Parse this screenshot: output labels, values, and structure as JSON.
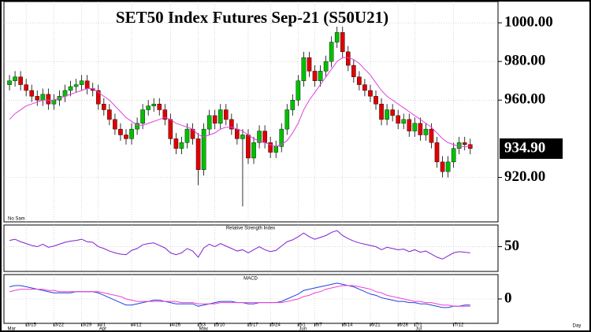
{
  "chart_data": [
    {
      "type": "candlestick",
      "title": "SET50  Index  Futures  Sep-21  (S50U21)",
      "note": "No Sam",
      "xlim": [
        -1,
        88
      ],
      "ylim": [
        897,
        1011
      ],
      "yticks": [
        {
          "value": 920,
          "label": "920.00"
        },
        {
          "value": 960,
          "label": "960.00"
        },
        {
          "value": 980,
          "label": "980.00"
        },
        {
          "value": 1000,
          "label": "1000.00"
        }
      ],
      "last": {
        "value": 934.9,
        "label": "934.90"
      },
      "up_color": "#00c000",
      "down_color": "#e00000",
      "open": [
        968,
        970,
        972,
        968,
        965,
        962,
        960,
        963,
        958,
        960,
        962,
        965,
        967,
        968,
        970,
        966,
        965,
        958,
        955,
        950,
        945,
        942,
        940,
        945,
        948,
        955,
        957,
        958,
        955,
        950,
        940,
        935,
        938,
        945,
        940,
        924,
        945,
        952,
        948,
        955,
        950,
        945,
        940,
        942,
        930,
        938,
        944,
        938,
        933,
        936,
        945,
        955,
        960,
        970,
        982,
        975,
        970,
        975,
        980,
        990,
        995,
        985,
        978,
        972,
        968,
        965,
        962,
        958,
        950,
        955,
        952,
        948,
        950,
        944,
        948,
        942,
        945,
        938,
        928,
        923,
        928,
        935,
        938,
        937
      ],
      "high": [
        973,
        975,
        975,
        971,
        968,
        965,
        966,
        966,
        963,
        965,
        968,
        970,
        971,
        973,
        973,
        969,
        968,
        961,
        958,
        953,
        948,
        945,
        948,
        951,
        958,
        960,
        961,
        961,
        958,
        953,
        943,
        941,
        948,
        948,
        943,
        948,
        955,
        955,
        958,
        958,
        953,
        948,
        945,
        945,
        941,
        947,
        947,
        941,
        939,
        948,
        958,
        963,
        973,
        985,
        985,
        978,
        978,
        983,
        993,
        998,
        998,
        988,
        981,
        975,
        971,
        968,
        965,
        961,
        958,
        958,
        955,
        953,
        953,
        951,
        951,
        948,
        948,
        941,
        931,
        931,
        938,
        941,
        941,
        940
      ],
      "low": [
        965,
        967,
        965,
        962,
        959,
        957,
        957,
        955,
        955,
        957,
        959,
        962,
        964,
        965,
        963,
        962,
        955,
        952,
        947,
        942,
        939,
        937,
        937,
        942,
        945,
        952,
        954,
        952,
        947,
        937,
        932,
        932,
        935,
        937,
        916,
        921,
        942,
        945,
        945,
        947,
        942,
        937,
        905,
        927,
        927,
        935,
        935,
        930,
        930,
        933,
        942,
        952,
        957,
        967,
        972,
        967,
        967,
        972,
        977,
        987,
        982,
        975,
        969,
        965,
        962,
        959,
        955,
        947,
        947,
        949,
        945,
        945,
        941,
        941,
        939,
        939,
        935,
        925,
        920,
        920,
        925,
        932,
        934,
        932
      ],
      "close": [
        970,
        972,
        968,
        965,
        962,
        960,
        963,
        958,
        960,
        962,
        965,
        967,
        968,
        970,
        966,
        965,
        958,
        955,
        950,
        945,
        942,
        940,
        945,
        948,
        955,
        957,
        958,
        955,
        950,
        940,
        935,
        938,
        945,
        940,
        924,
        945,
        952,
        948,
        955,
        950,
        945,
        940,
        942,
        930,
        938,
        944,
        938,
        933,
        936,
        945,
        955,
        960,
        970,
        982,
        975,
        970,
        975,
        980,
        990,
        995,
        985,
        978,
        972,
        968,
        965,
        962,
        958,
        950,
        955,
        952,
        948,
        950,
        944,
        948,
        942,
        945,
        938,
        928,
        923,
        928,
        935,
        938,
        937,
        935
      ],
      "ma": {
        "color": "#e040e0",
        "values": [
          950,
          953,
          955,
          957,
          958,
          959,
          960,
          960,
          960,
          961,
          962,
          963,
          964,
          965,
          966,
          966,
          964,
          962,
          960,
          957,
          954,
          951,
          949,
          947,
          947,
          948,
          949,
          950,
          951,
          950,
          948,
          947,
          946,
          945,
          942,
          941,
          942,
          943,
          945,
          946,
          946,
          945,
          944,
          942,
          940,
          939,
          938,
          937,
          936,
          937,
          939,
          943,
          948,
          955,
          960,
          964,
          968,
          972,
          976,
          980,
          982,
          982,
          981,
          979,
          976,
          973,
          969,
          965,
          962,
          960,
          958,
          956,
          954,
          952,
          950,
          948,
          946,
          943,
          940,
          938,
          937,
          936,
          936,
          936
        ]
      }
    },
    {
      "type": "line",
      "title": "Relative Strength Index",
      "xlim": [
        -1,
        88
      ],
      "ylim": [
        10,
        85
      ],
      "yticks": [
        50
      ],
      "series": [
        {
          "color": "#8020d0",
          "values": [
            60,
            62,
            58,
            55,
            52,
            50,
            54,
            49,
            51,
            54,
            57,
            59,
            60,
            62,
            58,
            57,
            50,
            47,
            43,
            40,
            38,
            37,
            44,
            47,
            53,
            55,
            56,
            52,
            48,
            40,
            37,
            40,
            47,
            43,
            33,
            48,
            54,
            50,
            55,
            51,
            47,
            43,
            45,
            40,
            45,
            50,
            45,
            42,
            44,
            51,
            58,
            61,
            66,
            72,
            66,
            62,
            65,
            68,
            73,
            76,
            68,
            63,
            59,
            56,
            54,
            52,
            50,
            45,
            49,
            47,
            45,
            46,
            42,
            45,
            41,
            43,
            38,
            33,
            30,
            35,
            40,
            42,
            41,
            40
          ]
        }
      ]
    },
    {
      "type": "line",
      "title": "MACD",
      "xlim": [
        -1,
        88
      ],
      "ylim": [
        -20,
        20
      ],
      "yticks": [
        0
      ],
      "x_label": "Day",
      "xticks": [
        {
          "value": 3,
          "label": "3/15"
        },
        {
          "value": 8,
          "label": "3/22"
        },
        {
          "value": 13,
          "label": "3/29"
        },
        {
          "value": 16,
          "label": "4/1"
        },
        {
          "value": 22,
          "label": "4/12"
        },
        {
          "value": 29,
          "label": "4/26"
        },
        {
          "value": 34,
          "label": "5/3"
        },
        {
          "value": 37,
          "label": "5/10"
        },
        {
          "value": 43,
          "label": "5/17"
        },
        {
          "value": 47,
          "label": "5/24"
        },
        {
          "value": 52,
          "label": "6/1"
        },
        {
          "value": 55,
          "label": "6/7"
        },
        {
          "value": 60,
          "label": "6/14"
        },
        {
          "value": 65,
          "label": "6/21"
        },
        {
          "value": 70,
          "label": "6/28"
        },
        {
          "value": 73,
          "label": "7/1"
        },
        {
          "value": 80,
          "label": "7/12"
        }
      ],
      "months": [
        {
          "value": -0.5,
          "label": "Mar"
        },
        {
          "value": 16,
          "label": "Apr"
        },
        {
          "value": 34,
          "label": "May"
        },
        {
          "value": 52,
          "label": "Jun"
        },
        {
          "value": 73,
          "label": "Jul"
        }
      ],
      "series": [
        {
          "color": "#2040e0",
          "values": [
            10,
            11,
            11,
            10,
            9,
            8,
            7,
            6,
            5,
            5,
            5,
            5,
            6,
            6,
            6,
            6,
            5,
            3,
            1,
            -1,
            -3,
            -5,
            -5,
            -4,
            -3,
            -2,
            -1,
            -1,
            -2,
            -3,
            -4,
            -4,
            -4,
            -4,
            -6,
            -5,
            -4,
            -3,
            -2,
            -2,
            -2,
            -3,
            -3,
            -4,
            -4,
            -3,
            -3,
            -3,
            -3,
            -2,
            0,
            2,
            4,
            7,
            8,
            9,
            10,
            11,
            12,
            13,
            12,
            11,
            10,
            8,
            6,
            4,
            3,
            1,
            0,
            -1,
            -2,
            -2,
            -3,
            -3,
            -4,
            -4,
            -5,
            -6,
            -7,
            -7,
            -6,
            -6,
            -5,
            -5
          ]
        },
        {
          "color": "#f040d0",
          "values": [
            6,
            7,
            8,
            8,
            8,
            8,
            8,
            7,
            7,
            6,
            6,
            6,
            6,
            6,
            6,
            6,
            6,
            5,
            4,
            3,
            2,
            0,
            -1,
            -2,
            -2,
            -2,
            -2,
            -2,
            -2,
            -2,
            -2,
            -3,
            -3,
            -3,
            -4,
            -4,
            -4,
            -4,
            -3,
            -3,
            -3,
            -3,
            -3,
            -3,
            -3,
            -3,
            -3,
            -3,
            -3,
            -3,
            -2,
            -1,
            0,
            2,
            3,
            5,
            6,
            8,
            9,
            10,
            11,
            11,
            11,
            10,
            9,
            8,
            6,
            5,
            3,
            2,
            1,
            0,
            -1,
            -2,
            -2,
            -3,
            -3,
            -4,
            -5,
            -5,
            -6,
            -6,
            -6,
            -6
          ]
        }
      ]
    }
  ]
}
